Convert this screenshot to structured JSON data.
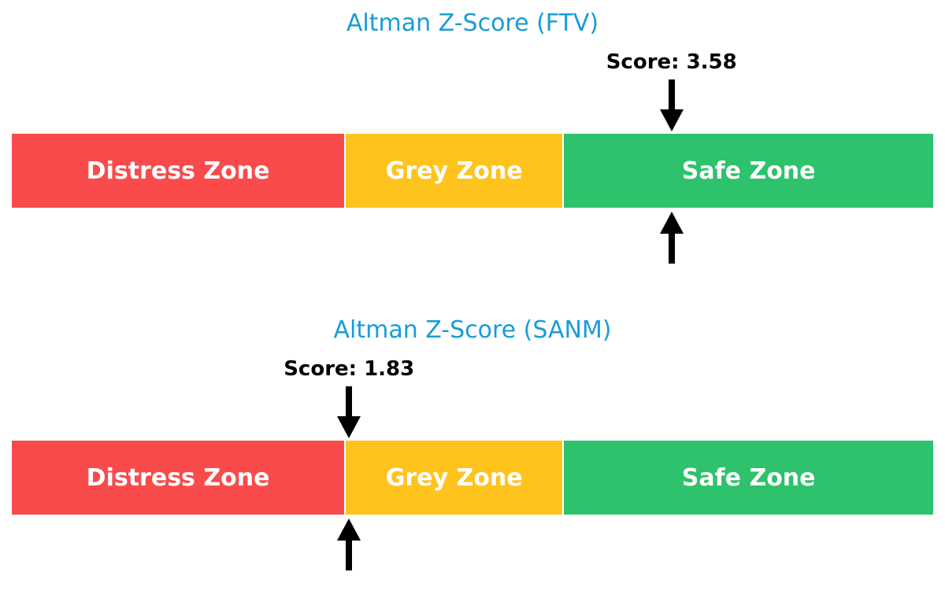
{
  "colors": {
    "title": "#189CD8",
    "score_text": "#000000",
    "arrow": "#000000",
    "zone_text": "#FFFFFF",
    "background": "#FFFFFF"
  },
  "chart_data": [
    {
      "type": "bar",
      "subtype": "zone-gauge",
      "title": "Altman Z-Score (FTV)",
      "score": 3.58,
      "score_label": "Score: 3.58",
      "scale_min": 0,
      "scale_max": 5,
      "zones": [
        {
          "label": "Distress Zone",
          "from": 0,
          "to": 1.81,
          "color": "#F94B4B"
        },
        {
          "label": "Grey Zone",
          "from": 1.81,
          "to": 2.99,
          "color": "#FFC31E"
        },
        {
          "label": "Safe Zone",
          "from": 2.99,
          "to": 5,
          "color": "#2DC26B"
        }
      ],
      "annotations": {
        "arrow_above_bar": "down-arrow at score position",
        "arrow_below_bar": "up-arrow at score position"
      }
    },
    {
      "type": "bar",
      "subtype": "zone-gauge",
      "title": "Altman Z-Score (SANM)",
      "score": 1.83,
      "score_label": "Score: 1.83",
      "scale_min": 0,
      "scale_max": 5,
      "zones": [
        {
          "label": "Distress Zone",
          "from": 0,
          "to": 1.81,
          "color": "#F94B4B"
        },
        {
          "label": "Grey Zone",
          "from": 1.81,
          "to": 2.99,
          "color": "#FFC31E"
        },
        {
          "label": "Safe Zone",
          "from": 2.99,
          "to": 5,
          "color": "#2DC26B"
        }
      ],
      "annotations": {
        "arrow_above_bar": "down-arrow at score position",
        "arrow_below_bar": "up-arrow at score position"
      }
    }
  ]
}
